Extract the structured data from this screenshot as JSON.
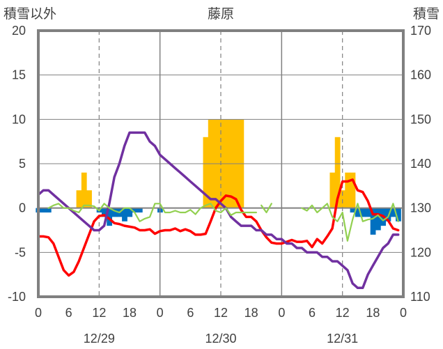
{
  "chart_data": {
    "type": "bar+line",
    "title": "藤原",
    "left_axis_label": "積雪以外",
    "right_axis_label": "積雪",
    "y_left": {
      "min": -10,
      "max": 20,
      "ticks": [
        -10,
        -5,
        0,
        5,
        10,
        15,
        20
      ],
      "tick_labels": [
        "-10",
        "-5",
        "0",
        "5",
        "10",
        "15",
        "20"
      ]
    },
    "y_right": {
      "min": 110,
      "max": 170,
      "ticks": [
        110,
        120,
        130,
        140,
        150,
        160,
        170
      ],
      "tick_labels": [
        "110",
        "120",
        "130",
        "140",
        "150",
        "160",
        "170"
      ]
    },
    "x": {
      "min": 0,
      "max": 72,
      "ticks": [
        0,
        6,
        12,
        18,
        24,
        30,
        36,
        42,
        48,
        54,
        60,
        66,
        72
      ],
      "tick_labels": [
        "0",
        "6",
        "12",
        "18",
        "0",
        "6",
        "12",
        "18",
        "0",
        "6",
        "12",
        "18",
        "0"
      ]
    },
    "day_dividers": [
      24,
      48
    ],
    "dashed_gridlines": [
      12,
      36,
      60
    ],
    "date_labels": [
      {
        "x": 12,
        "text": "12/29"
      },
      {
        "x": 36,
        "text": "12/30"
      },
      {
        "x": 60,
        "text": "12/31"
      }
    ],
    "colors": {
      "frame": "#808080",
      "gold": "#FFC000",
      "blue": "#0070C0",
      "red": "#FF0000",
      "purple": "#7030A0",
      "green": "#92D050",
      "grid": "#808080"
    },
    "series": [
      {
        "kind": "bar",
        "axis": "left",
        "color": "#FFC000",
        "x": [
          8,
          9,
          10,
          33,
          34,
          35,
          36,
          37,
          38,
          39,
          40,
          58,
          59,
          60,
          61,
          62
        ],
        "values": [
          2,
          4,
          2,
          8,
          10,
          10,
          10,
          10,
          10,
          10,
          10,
          4,
          8,
          2,
          4,
          4
        ]
      },
      {
        "kind": "bar",
        "axis": "left",
        "color": "#0070C0",
        "x": [
          0,
          1,
          2,
          12,
          13,
          14,
          15,
          16,
          17,
          18,
          19,
          20,
          24,
          62,
          63,
          64,
          65,
          66,
          67,
          68,
          69,
          70,
          71
        ],
        "values": [
          -0.5,
          -0.5,
          -0.5,
          -0.5,
          -1,
          -2,
          -1,
          -1,
          -1.5,
          -1,
          -0.5,
          -0.5,
          -0.5,
          -0.5,
          -1,
          -1,
          -1,
          -3,
          -2.5,
          -2,
          -1.5,
          -1,
          -1.5
        ]
      },
      {
        "kind": "line",
        "axis": "left",
        "color": "#FF0000",
        "x": [
          0,
          1,
          2,
          3,
          4,
          5,
          6,
          7,
          8,
          9,
          10,
          11,
          12,
          13,
          14,
          15,
          16,
          17,
          18,
          19,
          20,
          21,
          22,
          23,
          24,
          25,
          26,
          27,
          28,
          29,
          30,
          31,
          32,
          33,
          34,
          35,
          36,
          37,
          38,
          39,
          40,
          41,
          42,
          43,
          44,
          45,
          46,
          47,
          48,
          49,
          50,
          51,
          52,
          53,
          54,
          55,
          56,
          57,
          58,
          59,
          60,
          61,
          62,
          63,
          64,
          65,
          66,
          67,
          68,
          69,
          70,
          71
        ],
        "values": [
          -3.2,
          -3.2,
          -3.3,
          -4,
          -5.5,
          -7,
          -7.6,
          -7.2,
          -6,
          -4.5,
          -3,
          -1.5,
          -0.9,
          -0.8,
          -1.2,
          -1.7,
          -1.8,
          -2,
          -2.1,
          -2.2,
          -2.5,
          -2.5,
          -2.4,
          -2.9,
          -2.6,
          -2.5,
          -2.5,
          -2.3,
          -2.6,
          -2.4,
          -2.6,
          -3,
          -3,
          -2.9,
          -1.5,
          0,
          0.8,
          1.4,
          1.3,
          1,
          -0.2,
          -1,
          -1,
          -1.5,
          -2.5,
          -3.3,
          -3.9,
          -4,
          -4,
          -3.8,
          -3.6,
          -3.8,
          -3.8,
          -3.7,
          -4.4,
          -3.5,
          -4,
          -3.2,
          -2.3,
          1,
          3,
          3,
          3.2,
          2,
          1.8,
          0.8,
          -0.7,
          -0.7,
          -0.9,
          -1.4,
          -2.3,
          -2.5
        ]
      },
      {
        "kind": "line",
        "axis": "right",
        "color": "#7030A0",
        "x": [
          0,
          1,
          2,
          3,
          4,
          5,
          6,
          7,
          8,
          9,
          10,
          11,
          12,
          13,
          14,
          15,
          16,
          17,
          18,
          19,
          20,
          21,
          22,
          23,
          24,
          25,
          26,
          27,
          28,
          29,
          30,
          31,
          32,
          33,
          34,
          35,
          36,
          37,
          38,
          39,
          40,
          41,
          42,
          43,
          44,
          45,
          46,
          47,
          48,
          49,
          50,
          51,
          52,
          53,
          54,
          55,
          56,
          57,
          58,
          59,
          60,
          61,
          62,
          63,
          64,
          65,
          66,
          67,
          68,
          69,
          70,
          71
        ],
        "values": [
          133,
          134,
          134,
          133,
          132,
          131,
          130,
          129,
          128,
          127,
          126,
          125,
          125,
          126,
          131,
          137,
          140,
          144,
          147,
          147,
          147,
          147,
          145,
          144,
          142,
          141,
          140,
          139,
          138,
          137,
          136,
          135,
          134,
          133,
          132,
          132,
          131,
          130,
          128,
          127,
          126,
          126,
          126,
          125,
          125,
          124,
          124,
          123,
          123,
          122,
          122,
          121,
          121,
          120,
          120,
          120,
          119,
          119,
          118,
          118,
          117,
          116,
          113,
          112,
          112,
          115,
          117,
          119,
          121,
          122,
          124,
          124
        ]
      },
      {
        "kind": "line",
        "axis": "left",
        "color": "#92D050",
        "segments": [
          {
            "x": [
              2,
              3,
              4,
              5,
              6,
              7,
              8,
              9,
              10,
              11,
              12,
              13,
              14,
              15,
              16,
              17,
              18,
              19,
              20,
              21,
              22,
              23,
              24,
              25,
              26,
              27,
              28,
              29,
              30,
              31,
              32,
              33,
              34,
              35,
              36,
              37,
              38,
              39,
              40,
              41,
              42,
              43
            ],
            "values": [
              0,
              0.3,
              0.5,
              0,
              0,
              -0.3,
              -0.5,
              0.3,
              0.3,
              0.2,
              -0.3,
              0.5,
              0,
              -0.3,
              -0.5,
              0,
              0,
              -0.5,
              -1.5,
              -1.2,
              -1,
              0.5,
              0.5,
              -0.5,
              -0.5,
              -0.3,
              -0.5,
              -0.5,
              -0.2,
              -0.7,
              0,
              0.3,
              0.5,
              -0.3,
              -0.5,
              0,
              -0.8,
              -0.5,
              -0.5,
              -0.5,
              -0.5,
              -0.5
            ]
          },
          {
            "x": [
              44,
              45,
              46
            ],
            "values": [
              0.3,
              -0.5,
              0.5
            ]
          },
          {
            "x": [
              52,
              53,
              54,
              55,
              56,
              57,
              58,
              59,
              60,
              61,
              62,
              63,
              64,
              65,
              66,
              67,
              68,
              69,
              70,
              71
            ],
            "values": [
              0,
              -0.3,
              0.3,
              -0.5,
              0,
              0.5,
              -1,
              -1.5,
              -0.5,
              -3.7,
              -1.3,
              0.5,
              -1.5,
              -1.3,
              -1.2,
              -0.8,
              -1.4,
              -1,
              0.5,
              -1.5
            ]
          }
        ]
      }
    ]
  }
}
